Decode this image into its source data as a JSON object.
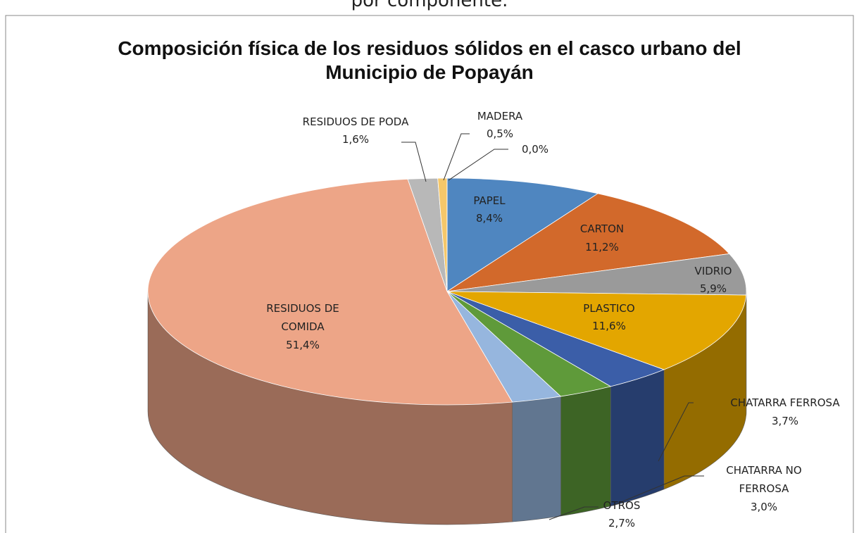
{
  "caption": "por componente.",
  "chart_data": {
    "type": "pie3d",
    "title": "Composición física de los residuos sólidos en el casco urbano del Municipio de Popayán",
    "categories": [
      "PAPEL",
      "CARTON",
      "VIDRIO",
      "PLASTICO",
      "CHATARRA FERROSA",
      "CHATARRA NO FERROSA",
      "OTROS",
      "RESIDUOS DE COMIDA",
      "RESIDUOS DE PODA",
      "MADERA",
      null
    ],
    "values": [
      8.4,
      11.2,
      5.9,
      11.6,
      3.7,
      3.0,
      2.7,
      51.4,
      1.6,
      0.5,
      0.0
    ],
    "value_labels": [
      "8,4%",
      "11,2%",
      "5,9%",
      "11,6%",
      "3,7%",
      "3,0%",
      "2,7%",
      "51,4%",
      "1,6%",
      "0,5%",
      "0,0%"
    ],
    "colors": [
      "#4f86c0",
      "#d2692b",
      "#9a9a9a",
      "#e3a600",
      "#3b5ea8",
      "#5f9a3a",
      "#96b6de",
      "#eda587",
      "#b8b8b8",
      "#f5c76a",
      "#7a9cc8"
    ]
  }
}
